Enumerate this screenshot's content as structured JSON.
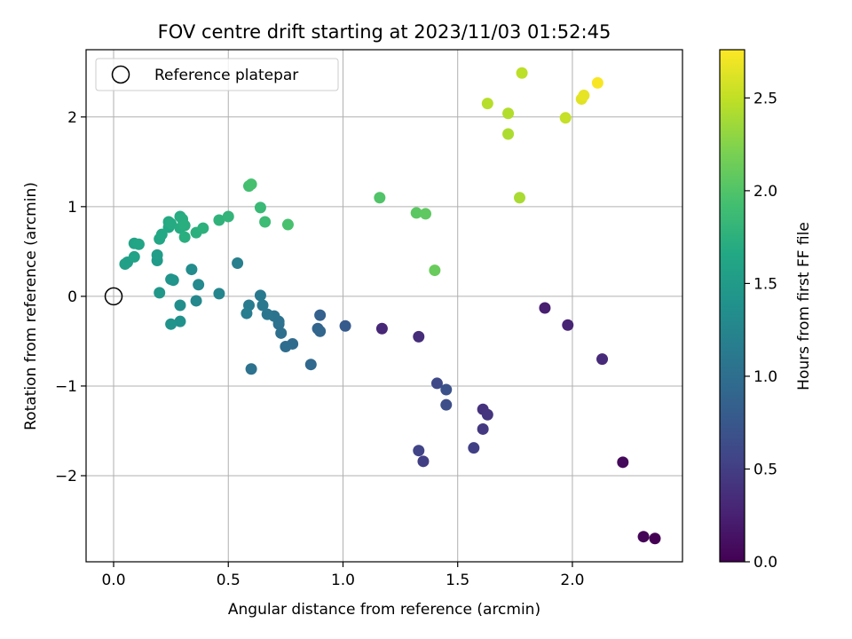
{
  "chart_data": {
    "type": "scatter",
    "title": "FOV centre drift starting at 2023/11/03 01:52:45",
    "xlabel": "Angular distance from reference (arcmin)",
    "ylabel": "Rotation from reference (arcmin)",
    "colorbar_label": "Hours from first FF file",
    "colormap": "viridis",
    "xlim": [
      -0.12,
      2.48
    ],
    "ylim": [
      -2.96,
      2.75
    ],
    "clim": [
      0.0,
      2.76
    ],
    "x_ticks": [
      0.0,
      0.5,
      1.0,
      1.5,
      2.0
    ],
    "x_tick_labels": [
      "0.0",
      "0.5",
      "1.0",
      "1.5",
      "2.0"
    ],
    "y_ticks": [
      -2,
      -1,
      0,
      1,
      2
    ],
    "y_tick_labels": [
      "−2",
      "−1",
      "0",
      "1",
      "2"
    ],
    "colorbar_ticks": [
      0.0,
      0.5,
      1.0,
      1.5,
      2.0,
      2.5
    ],
    "colorbar_tick_labels": [
      "0.0",
      "0.5",
      "1.0",
      "1.5",
      "2.0",
      "2.5"
    ],
    "grid": true,
    "legend": {
      "placement": "upper-left",
      "entries": [
        {
          "label": "Reference platepar",
          "marker": "open-circle"
        }
      ]
    },
    "reference_point": {
      "x": 0.0,
      "y": 0.0
    },
    "points": [
      {
        "x": 2.36,
        "y": -2.7,
        "c": 0.0
      },
      {
        "x": 2.31,
        "y": -2.68,
        "c": 0.03
      },
      {
        "x": 2.22,
        "y": -1.85,
        "c": 0.06
      },
      {
        "x": 1.98,
        "y": -0.32,
        "c": 0.28
      },
      {
        "x": 2.13,
        "y": -0.7,
        "c": 0.33
      },
      {
        "x": 1.88,
        "y": -0.13,
        "c": 0.23
      },
      {
        "x": 1.61,
        "y": -1.26,
        "c": 0.4
      },
      {
        "x": 1.63,
        "y": -1.32,
        "c": 0.42
      },
      {
        "x": 1.61,
        "y": -1.48,
        "c": 0.45
      },
      {
        "x": 1.57,
        "y": -1.69,
        "c": 0.52
      },
      {
        "x": 1.45,
        "y": -1.04,
        "c": 0.68
      },
      {
        "x": 1.45,
        "y": -1.21,
        "c": 0.65
      },
      {
        "x": 1.41,
        "y": -0.97,
        "c": 0.6
      },
      {
        "x": 1.33,
        "y": -1.72,
        "c": 0.55
      },
      {
        "x": 1.35,
        "y": -1.84,
        "c": 0.5
      },
      {
        "x": 1.33,
        "y": -0.45,
        "c": 0.35
      },
      {
        "x": 1.17,
        "y": -0.36,
        "c": 0.3
      },
      {
        "x": 1.01,
        "y": -0.33,
        "c": 0.78
      },
      {
        "x": 0.9,
        "y": -0.21,
        "c": 0.85
      },
      {
        "x": 0.89,
        "y": -0.36,
        "c": 0.88
      },
      {
        "x": 0.9,
        "y": -0.39,
        "c": 0.9
      },
      {
        "x": 0.86,
        "y": -0.76,
        "c": 0.93
      },
      {
        "x": 0.78,
        "y": -0.53,
        "c": 0.96
      },
      {
        "x": 0.75,
        "y": -0.56,
        "c": 0.98
      },
      {
        "x": 0.73,
        "y": -0.41,
        "c": 1.0
      },
      {
        "x": 0.72,
        "y": -0.31,
        "c": 1.02
      },
      {
        "x": 0.72,
        "y": -0.28,
        "c": 1.04
      },
      {
        "x": 0.7,
        "y": -0.22,
        "c": 1.06
      },
      {
        "x": 0.67,
        "y": -0.2,
        "c": 1.08
      },
      {
        "x": 0.65,
        "y": -0.1,
        "c": 1.1
      },
      {
        "x": 0.64,
        "y": 0.01,
        "c": 1.12
      },
      {
        "x": 0.6,
        "y": -0.81,
        "c": 1.04
      },
      {
        "x": 0.59,
        "y": -0.1,
        "c": 1.14
      },
      {
        "x": 0.58,
        "y": -0.19,
        "c": 1.16
      },
      {
        "x": 0.54,
        "y": 0.37,
        "c": 1.18
      },
      {
        "x": 0.46,
        "y": 0.03,
        "c": 1.25
      },
      {
        "x": 0.37,
        "y": 0.13,
        "c": 1.3
      },
      {
        "x": 0.36,
        "y": -0.05,
        "c": 1.28
      },
      {
        "x": 0.34,
        "y": 0.3,
        "c": 1.32
      },
      {
        "x": 0.29,
        "y": -0.1,
        "c": 1.35
      },
      {
        "x": 0.29,
        "y": -0.28,
        "c": 1.38
      },
      {
        "x": 0.26,
        "y": 0.18,
        "c": 1.4
      },
      {
        "x": 0.25,
        "y": 0.19,
        "c": 1.42
      },
      {
        "x": 0.25,
        "y": -0.31,
        "c": 1.4
      },
      {
        "x": 0.2,
        "y": 0.04,
        "c": 1.45
      },
      {
        "x": 0.19,
        "y": 0.4,
        "c": 1.5
      },
      {
        "x": 0.19,
        "y": 0.46,
        "c": 1.52
      },
      {
        "x": 0.05,
        "y": 0.36,
        "c": 1.55
      },
      {
        "x": 0.06,
        "y": 0.38,
        "c": 1.56
      },
      {
        "x": 0.09,
        "y": 0.44,
        "c": 1.58
      },
      {
        "x": 0.09,
        "y": 0.59,
        "c": 1.6
      },
      {
        "x": 0.11,
        "y": 0.58,
        "c": 1.62
      },
      {
        "x": 0.2,
        "y": 0.64,
        "c": 1.63
      },
      {
        "x": 0.21,
        "y": 0.69,
        "c": 1.65
      },
      {
        "x": 0.24,
        "y": 0.77,
        "c": 1.66
      },
      {
        "x": 0.24,
        "y": 0.83,
        "c": 1.67
      },
      {
        "x": 0.25,
        "y": 0.81,
        "c": 1.68
      },
      {
        "x": 0.29,
        "y": 0.89,
        "c": 1.69
      },
      {
        "x": 0.29,
        "y": 0.76,
        "c": 1.7
      },
      {
        "x": 0.3,
        "y": 0.86,
        "c": 1.71
      },
      {
        "x": 0.31,
        "y": 0.79,
        "c": 1.72
      },
      {
        "x": 0.31,
        "y": 0.66,
        "c": 1.73
      },
      {
        "x": 0.36,
        "y": 0.71,
        "c": 1.74
      },
      {
        "x": 0.39,
        "y": 0.76,
        "c": 1.75
      },
      {
        "x": 0.46,
        "y": 0.85,
        "c": 1.78
      },
      {
        "x": 0.5,
        "y": 0.89,
        "c": 1.8
      },
      {
        "x": 0.64,
        "y": 0.99,
        "c": 1.85
      },
      {
        "x": 0.66,
        "y": 0.83,
        "c": 1.88
      },
      {
        "x": 0.59,
        "y": 1.23,
        "c": 1.92
      },
      {
        "x": 0.6,
        "y": 1.25,
        "c": 1.94
      },
      {
        "x": 0.76,
        "y": 0.8,
        "c": 1.95
      },
      {
        "x": 1.16,
        "y": 1.1,
        "c": 2.0
      },
      {
        "x": 1.32,
        "y": 0.93,
        "c": 2.05
      },
      {
        "x": 1.36,
        "y": 0.92,
        "c": 2.07
      },
      {
        "x": 1.4,
        "y": 0.29,
        "c": 2.12
      },
      {
        "x": 1.77,
        "y": 1.1,
        "c": 2.4
      },
      {
        "x": 1.72,
        "y": 1.81,
        "c": 2.42
      },
      {
        "x": 1.72,
        "y": 2.04,
        "c": 2.44
      },
      {
        "x": 1.63,
        "y": 2.15,
        "c": 2.46
      },
      {
        "x": 1.78,
        "y": 2.49,
        "c": 2.48
      },
      {
        "x": 1.97,
        "y": 1.99,
        "c": 2.52
      },
      {
        "x": 2.04,
        "y": 2.2,
        "c": 2.63
      },
      {
        "x": 2.05,
        "y": 2.24,
        "c": 2.66
      },
      {
        "x": 2.11,
        "y": 2.38,
        "c": 2.74
      }
    ]
  }
}
